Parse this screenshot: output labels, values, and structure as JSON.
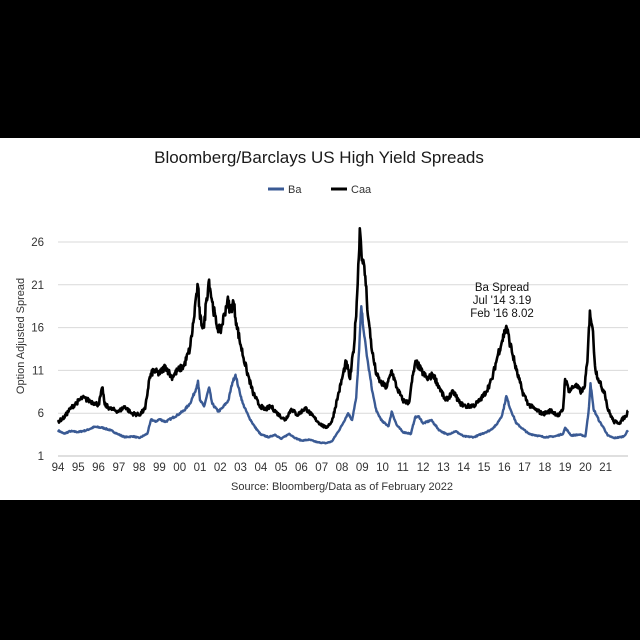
{
  "chart_data": {
    "type": "line",
    "title": "Bloomberg/Barclays US High Yield Spreads",
    "ylabel": "Option Adjusted Spread",
    "xlabel": "",
    "source": "Source: Bloomberg/Data as of February 2022",
    "ylim": [
      1,
      26
    ],
    "xlim": [
      1994,
      2022.1
    ],
    "yticks": [
      "1",
      "6",
      "11",
      "16",
      "21",
      "26"
    ],
    "xticks": [
      "94",
      "95",
      "96",
      "97",
      "98",
      "99",
      "00",
      "01",
      "02",
      "03",
      "04",
      "05",
      "06",
      "07",
      "08",
      "09",
      "10",
      "11",
      "12",
      "13",
      "14",
      "15",
      "16",
      "17",
      "18",
      "19",
      "20",
      "21"
    ],
    "grid": "horizontal",
    "legend_position": "top",
    "annotation": [
      "Ba Spread",
      "Jul '14 3.19",
      "Feb '16 8.02"
    ],
    "series": [
      {
        "name": "Ba",
        "color": "#3a5a94",
        "points": [
          [
            1994.0,
            4.0
          ],
          [
            1994.3,
            3.6
          ],
          [
            1994.6,
            3.9
          ],
          [
            1995.0,
            3.8
          ],
          [
            1995.4,
            4.0
          ],
          [
            1995.8,
            4.4
          ],
          [
            1996.2,
            4.3
          ],
          [
            1996.6,
            4.0
          ],
          [
            1997.0,
            3.5
          ],
          [
            1997.3,
            3.2
          ],
          [
            1997.7,
            3.3
          ],
          [
            1998.0,
            3.1
          ],
          [
            1998.4,
            3.6
          ],
          [
            1998.6,
            5.3
          ],
          [
            1998.8,
            5.0
          ],
          [
            1999.0,
            5.3
          ],
          [
            1999.3,
            5.0
          ],
          [
            1999.6,
            5.4
          ],
          [
            1999.9,
            5.8
          ],
          [
            2000.2,
            6.3
          ],
          [
            2000.5,
            7.1
          ],
          [
            2000.8,
            8.8
          ],
          [
            2000.9,
            9.8
          ],
          [
            2001.0,
            7.5
          ],
          [
            2001.2,
            6.8
          ],
          [
            2001.45,
            9.0
          ],
          [
            2001.6,
            7.1
          ],
          [
            2001.9,
            6.2
          ],
          [
            2002.1,
            6.6
          ],
          [
            2002.4,
            7.5
          ],
          [
            2002.6,
            9.6
          ],
          [
            2002.75,
            10.5
          ],
          [
            2002.9,
            9.0
          ],
          [
            2003.1,
            7.2
          ],
          [
            2003.4,
            5.6
          ],
          [
            2003.7,
            4.4
          ],
          [
            2004.0,
            3.5
          ],
          [
            2004.4,
            3.2
          ],
          [
            2004.7,
            3.5
          ],
          [
            2005.0,
            3.0
          ],
          [
            2005.4,
            3.6
          ],
          [
            2005.7,
            3.1
          ],
          [
            2006.0,
            2.8
          ],
          [
            2006.4,
            2.9
          ],
          [
            2006.8,
            2.6
          ],
          [
            2007.2,
            2.5
          ],
          [
            2007.5,
            2.7
          ],
          [
            2007.8,
            3.8
          ],
          [
            2008.0,
            4.6
          ],
          [
            2008.3,
            6.0
          ],
          [
            2008.5,
            5.2
          ],
          [
            2008.7,
            7.8
          ],
          [
            2008.85,
            13.5
          ],
          [
            2008.95,
            18.5
          ],
          [
            2009.1,
            15.0
          ],
          [
            2009.3,
            11.5
          ],
          [
            2009.5,
            8.5
          ],
          [
            2009.7,
            6.2
          ],
          [
            2010.0,
            5.0
          ],
          [
            2010.3,
            4.5
          ],
          [
            2010.45,
            6.2
          ],
          [
            2010.7,
            4.6
          ],
          [
            2011.0,
            3.8
          ],
          [
            2011.4,
            3.6
          ],
          [
            2011.6,
            5.5
          ],
          [
            2011.8,
            5.6
          ],
          [
            2012.0,
            4.8
          ],
          [
            2012.4,
            5.2
          ],
          [
            2012.8,
            4.0
          ],
          [
            2013.2,
            3.5
          ],
          [
            2013.6,
            3.9
          ],
          [
            2014.0,
            3.3
          ],
          [
            2014.5,
            3.2
          ],
          [
            2014.9,
            3.6
          ],
          [
            2015.3,
            4.0
          ],
          [
            2015.6,
            4.6
          ],
          [
            2015.9,
            5.8
          ],
          [
            2016.1,
            8.0
          ],
          [
            2016.3,
            6.5
          ],
          [
            2016.6,
            4.8
          ],
          [
            2016.9,
            4.2
          ],
          [
            2017.2,
            3.6
          ],
          [
            2017.6,
            3.4
          ],
          [
            2018.0,
            3.2
          ],
          [
            2018.5,
            3.3
          ],
          [
            2018.9,
            3.6
          ],
          [
            2019.0,
            4.3
          ],
          [
            2019.3,
            3.4
          ],
          [
            2019.7,
            3.5
          ],
          [
            2020.0,
            3.3
          ],
          [
            2020.15,
            6.0
          ],
          [
            2020.25,
            9.5
          ],
          [
            2020.4,
            6.5
          ],
          [
            2020.7,
            5.0
          ],
          [
            2020.9,
            4.3
          ],
          [
            2021.1,
            3.4
          ],
          [
            2021.4,
            3.1
          ],
          [
            2021.7,
            3.2
          ],
          [
            2021.9,
            3.3
          ],
          [
            2022.1,
            4.0
          ]
        ]
      },
      {
        "name": "Caa",
        "color": "#000000",
        "points": [
          [
            1994.0,
            5.0
          ],
          [
            1994.3,
            5.5
          ],
          [
            1994.6,
            6.5
          ],
          [
            1994.9,
            7.2
          ],
          [
            1995.2,
            7.8
          ],
          [
            1995.5,
            7.5
          ],
          [
            1995.8,
            7.2
          ],
          [
            1996.0,
            7.0
          ],
          [
            1996.2,
            9.0
          ],
          [
            1996.3,
            7.0
          ],
          [
            1996.6,
            6.5
          ],
          [
            1997.0,
            6.2
          ],
          [
            1997.3,
            6.8
          ],
          [
            1997.6,
            6.0
          ],
          [
            1998.0,
            5.8
          ],
          [
            1998.3,
            6.5
          ],
          [
            1998.5,
            10.0
          ],
          [
            1998.7,
            11.0
          ],
          [
            1999.0,
            10.6
          ],
          [
            1999.3,
            11.5
          ],
          [
            1999.6,
            10.2
          ],
          [
            1999.9,
            11.0
          ],
          [
            2000.2,
            11.5
          ],
          [
            2000.5,
            13.5
          ],
          [
            2000.7,
            17.0
          ],
          [
            2000.8,
            19.5
          ],
          [
            2000.9,
            20.8
          ],
          [
            2001.0,
            17.0
          ],
          [
            2001.2,
            16.0
          ],
          [
            2001.3,
            19.0
          ],
          [
            2001.45,
            21.6
          ],
          [
            2001.6,
            19.0
          ],
          [
            2001.8,
            16.5
          ],
          [
            2002.0,
            15.5
          ],
          [
            2002.2,
            17.5
          ],
          [
            2002.35,
            19.2
          ],
          [
            2002.5,
            18.0
          ],
          [
            2002.65,
            19.0
          ],
          [
            2002.8,
            16.5
          ],
          [
            2003.0,
            14.0
          ],
          [
            2003.3,
            11.0
          ],
          [
            2003.6,
            8.5
          ],
          [
            2003.9,
            7.0
          ],
          [
            2004.2,
            6.4
          ],
          [
            2004.5,
            6.8
          ],
          [
            2004.8,
            6.0
          ],
          [
            2005.2,
            5.2
          ],
          [
            2005.5,
            6.5
          ],
          [
            2005.8,
            5.8
          ],
          [
            2006.2,
            6.6
          ],
          [
            2006.5,
            5.8
          ],
          [
            2006.9,
            4.8
          ],
          [
            2007.2,
            4.3
          ],
          [
            2007.5,
            5.0
          ],
          [
            2007.8,
            8.0
          ],
          [
            2008.0,
            10.0
          ],
          [
            2008.2,
            12.0
          ],
          [
            2008.4,
            10.0
          ],
          [
            2008.6,
            14.0
          ],
          [
            2008.75,
            20.0
          ],
          [
            2008.88,
            27.6
          ],
          [
            2009.0,
            24.0
          ],
          [
            2009.15,
            22.0
          ],
          [
            2009.3,
            17.0
          ],
          [
            2009.5,
            13.0
          ],
          [
            2009.7,
            10.5
          ],
          [
            2009.9,
            9.6
          ],
          [
            2010.2,
            9.0
          ],
          [
            2010.45,
            11.0
          ],
          [
            2010.7,
            9.0
          ],
          [
            2011.0,
            7.5
          ],
          [
            2011.3,
            7.2
          ],
          [
            2011.5,
            10.5
          ],
          [
            2011.65,
            12.0
          ],
          [
            2011.9,
            11.0
          ],
          [
            2012.2,
            10.0
          ],
          [
            2012.5,
            10.5
          ],
          [
            2012.8,
            9.0
          ],
          [
            2013.1,
            7.5
          ],
          [
            2013.5,
            8.5
          ],
          [
            2013.8,
            7.2
          ],
          [
            2014.1,
            6.8
          ],
          [
            2014.5,
            6.9
          ],
          [
            2014.8,
            7.5
          ],
          [
            2015.1,
            8.5
          ],
          [
            2015.4,
            10.0
          ],
          [
            2015.7,
            13.0
          ],
          [
            2015.9,
            14.5
          ],
          [
            2016.1,
            16.2
          ],
          [
            2016.3,
            14.0
          ],
          [
            2016.6,
            11.0
          ],
          [
            2016.9,
            8.5
          ],
          [
            2017.2,
            7.0
          ],
          [
            2017.5,
            6.5
          ],
          [
            2017.9,
            5.9
          ],
          [
            2018.3,
            6.3
          ],
          [
            2018.7,
            5.7
          ],
          [
            2018.9,
            6.5
          ],
          [
            2019.0,
            10.0
          ],
          [
            2019.2,
            8.6
          ],
          [
            2019.5,
            9.3
          ],
          [
            2019.8,
            8.5
          ],
          [
            2019.95,
            9.0
          ],
          [
            2020.1,
            12.0
          ],
          [
            2020.22,
            18.0
          ],
          [
            2020.35,
            16.0
          ],
          [
            2020.5,
            11.0
          ],
          [
            2020.8,
            9.0
          ],
          [
            2020.95,
            8.5
          ],
          [
            2021.1,
            6.5
          ],
          [
            2021.4,
            5.0
          ],
          [
            2021.7,
            4.9
          ],
          [
            2021.9,
            5.5
          ],
          [
            2022.0,
            5.6
          ],
          [
            2022.1,
            6.3
          ]
        ]
      }
    ]
  }
}
